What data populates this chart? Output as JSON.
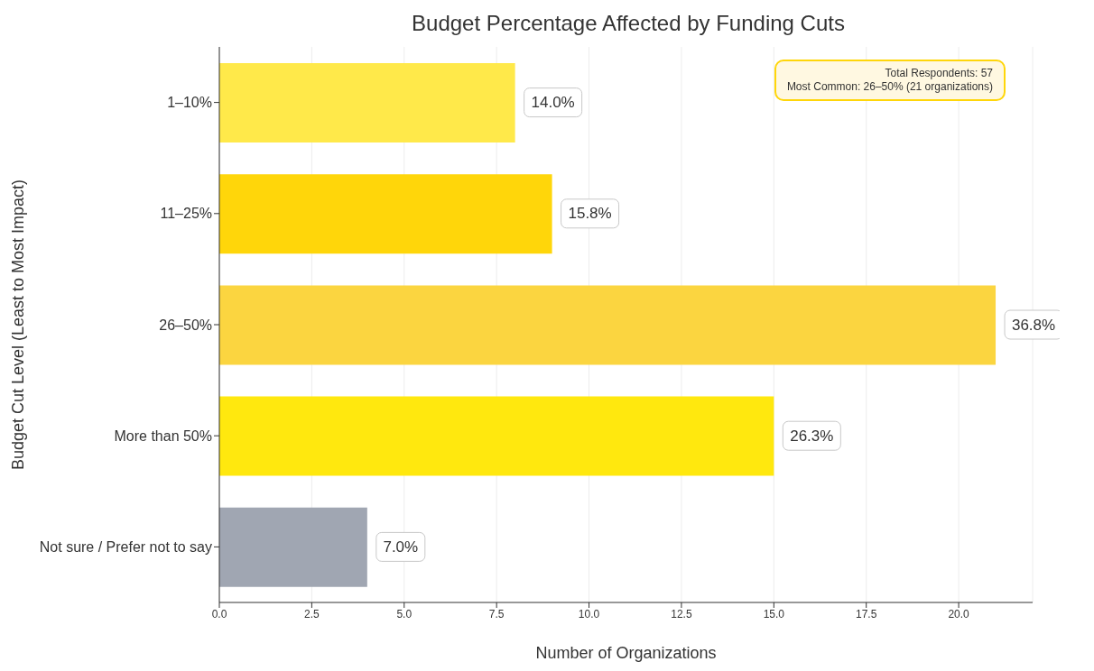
{
  "chart_data": {
    "type": "bar",
    "orientation": "horizontal",
    "title": "Budget Percentage Affected by Funding Cuts",
    "xlabel": "Number of Organizations",
    "ylabel": "Budget Cut Level (Least to Most Impact)",
    "categories": [
      "1–10%",
      "11–25%",
      "26–50%",
      "More than 50%",
      "Not sure / Prefer not to say"
    ],
    "values": [
      8,
      9,
      21,
      15,
      4
    ],
    "colors": [
      "#ffe94a",
      "#ffd60a",
      "#fbd540",
      "#ffe80e",
      "#a0a6b2"
    ],
    "xlim": [
      0,
      22
    ],
    "xticks": [
      {
        "value": 0,
        "label": "0.0"
      },
      2.5,
      {
        "value": 5,
        "label": "5.0"
      },
      7.5,
      {
        "value": 10,
        "label": "10.0"
      },
      12.5,
      {
        "value": 15,
        "label": "15.0"
      },
      17.5,
      {
        "value": 20,
        "label": "20.0"
      }
    ],
    "grid": "x",
    "annotations": [
      "Total Respondents: 57\nMost Common: 26–50% (21 organizations)",
      {
        "text": "14.0%",
        "x": 8,
        "y": "1–10%"
      },
      {
        "text": "15.8%",
        "x": 9,
        "y": "11–25%"
      },
      {
        "text": "36.8%",
        "x": 21,
        "y": "26–50%"
      },
      {
        "text": "26.3%",
        "x": 15,
        "y": "More than 50%"
      },
      {
        "text": "7.0%",
        "x": 4,
        "y": "Not sure / Prefer not to say"
      }
    ]
  }
}
